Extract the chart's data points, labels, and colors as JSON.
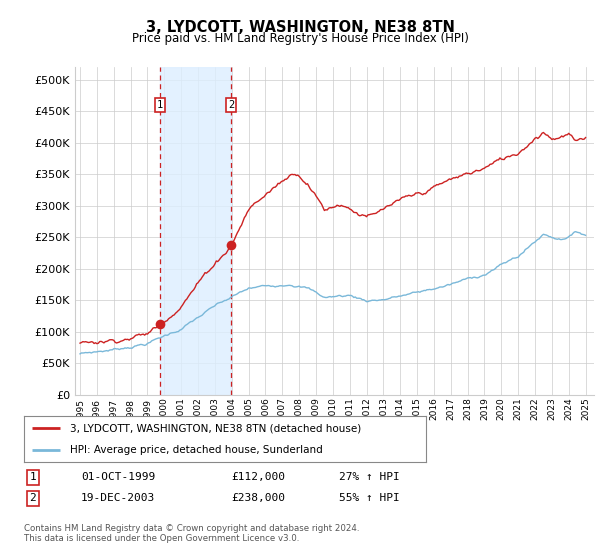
{
  "title": "3, LYDCOTT, WASHINGTON, NE38 8TN",
  "subtitle": "Price paid vs. HM Land Registry's House Price Index (HPI)",
  "legend_line1": "3, LYDCOTT, WASHINGTON, NE38 8TN (detached house)",
  "legend_line2": "HPI: Average price, detached house, Sunderland",
  "footnote": "Contains HM Land Registry data © Crown copyright and database right 2024.\nThis data is licensed under the Open Government Licence v3.0.",
  "sale1_date": "01-OCT-1999",
  "sale1_price": "£112,000",
  "sale1_hpi": "27% ↑ HPI",
  "sale2_date": "19-DEC-2003",
  "sale2_price": "£238,000",
  "sale2_hpi": "55% ↑ HPI",
  "sale1_x": 1999.75,
  "sale1_y": 112000,
  "sale2_x": 2003.96,
  "sale2_y": 238000,
  "hpi_color": "#7ab8d9",
  "price_color": "#cc2222",
  "shade_color": "#ddeeff",
  "grid_color": "#cccccc",
  "bg_color": "#ffffff",
  "ylim": [
    0,
    520000
  ],
  "xlim": [
    1994.7,
    2025.5
  ],
  "yticks": [
    0,
    50000,
    100000,
    150000,
    200000,
    250000,
    300000,
    350000,
    400000,
    450000,
    500000
  ],
  "ytick_labels": [
    "£0",
    "£50K",
    "£100K",
    "£150K",
    "£200K",
    "£250K",
    "£300K",
    "£350K",
    "£400K",
    "£450K",
    "£500K"
  ]
}
